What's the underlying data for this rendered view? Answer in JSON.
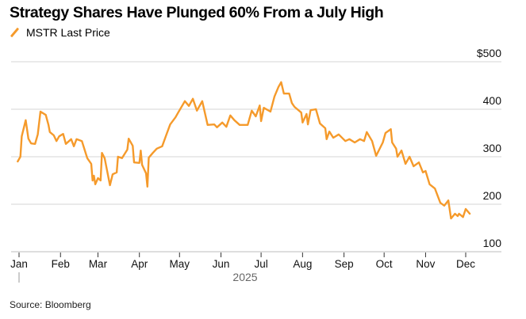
{
  "chart_data": {
    "type": "line",
    "title": "Strategy Shares Have Plunged 60% From a July High",
    "legend": [
      {
        "name": "MSTR Last Price",
        "color": "#f59a2b"
      }
    ],
    "legend_position": "top-left",
    "xlabel": "2025",
    "ylabel": "",
    "y_unit_prefix": "$",
    "ylim": [
      100,
      500
    ],
    "yticks": [
      100,
      200,
      300,
      400,
      500
    ],
    "ytick_labels": [
      "100",
      "200",
      "300",
      "400",
      "$500"
    ],
    "xticks": [
      "Jan",
      "Feb",
      "Mar",
      "Apr",
      "May",
      "Jun",
      "Jul",
      "Aug",
      "Sep",
      "Oct",
      "Nov",
      "Dec"
    ],
    "x_year_label": "2025",
    "grid": "horizontal",
    "source": "Source: Bloomberg",
    "series": [
      {
        "name": "MSTR Last Price",
        "color": "#f59a2b",
        "points": [
          [
            "2024-12-31",
            290
          ],
          [
            "2025-01-02",
            300
          ],
          [
            "2025-01-03",
            343
          ],
          [
            "2025-01-06",
            377
          ],
          [
            "2025-01-08",
            338
          ],
          [
            "2025-01-10",
            328
          ],
          [
            "2025-01-13",
            327
          ],
          [
            "2025-01-15",
            347
          ],
          [
            "2025-01-17",
            395
          ],
          [
            "2025-01-21",
            388
          ],
          [
            "2025-01-23",
            367
          ],
          [
            "2025-01-24",
            352
          ],
          [
            "2025-01-27",
            345
          ],
          [
            "2025-01-29",
            333
          ],
          [
            "2025-01-31",
            343
          ],
          [
            "2025-02-03",
            348
          ],
          [
            "2025-02-05",
            327
          ],
          [
            "2025-02-09",
            337
          ],
          [
            "2025-02-11",
            322
          ],
          [
            "2025-02-13",
            337
          ],
          [
            "2025-02-17",
            333
          ],
          [
            "2025-02-19",
            315
          ],
          [
            "2025-02-21",
            297
          ],
          [
            "2025-02-24",
            285
          ],
          [
            "2025-02-25",
            250
          ],
          [
            "2025-02-26",
            260
          ],
          [
            "2025-02-27",
            242
          ],
          [
            "2025-03-01",
            255
          ],
          [
            "2025-03-03",
            250
          ],
          [
            "2025-03-04",
            308
          ],
          [
            "2025-03-06",
            297
          ],
          [
            "2025-03-10",
            240
          ],
          [
            "2025-03-12",
            263
          ],
          [
            "2025-03-15",
            267
          ],
          [
            "2025-03-16",
            300
          ],
          [
            "2025-03-19",
            297
          ],
          [
            "2025-03-23",
            315
          ],
          [
            "2025-03-24",
            338
          ],
          [
            "2025-03-27",
            323
          ],
          [
            "2025-03-28",
            288
          ],
          [
            "2025-04-01",
            287
          ],
          [
            "2025-04-02",
            313
          ],
          [
            "2025-04-03",
            283
          ],
          [
            "2025-04-06",
            265
          ],
          [
            "2025-04-07",
            237
          ],
          [
            "2025-04-08",
            298
          ],
          [
            "2025-04-11",
            308
          ],
          [
            "2025-04-14",
            317
          ],
          [
            "2025-04-18",
            322
          ],
          [
            "2025-04-21",
            345
          ],
          [
            "2025-04-24",
            368
          ],
          [
            "2025-04-28",
            383
          ],
          [
            "2025-04-30",
            393
          ],
          [
            "2025-05-05",
            417
          ],
          [
            "2025-05-08",
            407
          ],
          [
            "2025-05-11",
            422
          ],
          [
            "2025-05-14",
            397
          ],
          [
            "2025-05-18",
            417
          ],
          [
            "2025-05-22",
            367
          ],
          [
            "2025-05-27",
            368
          ],
          [
            "2025-05-29",
            362
          ],
          [
            "2025-06-02",
            372
          ],
          [
            "2025-06-05",
            363
          ],
          [
            "2025-06-08",
            387
          ],
          [
            "2025-06-11",
            377
          ],
          [
            "2025-06-15",
            367
          ],
          [
            "2025-06-21",
            367
          ],
          [
            "2025-06-24",
            397
          ],
          [
            "2025-06-27",
            385
          ],
          [
            "2025-06-30",
            408
          ],
          [
            "2025-07-01",
            375
          ],
          [
            "2025-07-03",
            403
          ],
          [
            "2025-07-08",
            395
          ],
          [
            "2025-07-11",
            427
          ],
          [
            "2025-07-14",
            447
          ],
          [
            "2025-07-16",
            457
          ],
          [
            "2025-07-18",
            433
          ],
          [
            "2025-07-22",
            433
          ],
          [
            "2025-07-24",
            413
          ],
          [
            "2025-07-26",
            405
          ],
          [
            "2025-07-31",
            393
          ],
          [
            "2025-08-01",
            372
          ],
          [
            "2025-08-04",
            390
          ],
          [
            "2025-08-05",
            368
          ],
          [
            "2025-08-07",
            398
          ],
          [
            "2025-08-11",
            400
          ],
          [
            "2025-08-14",
            370
          ],
          [
            "2025-08-18",
            360
          ],
          [
            "2025-08-19",
            337
          ],
          [
            "2025-08-21",
            353
          ],
          [
            "2025-08-24",
            340
          ],
          [
            "2025-08-28",
            347
          ],
          [
            "2025-09-02",
            333
          ],
          [
            "2025-09-05",
            337
          ],
          [
            "2025-09-09",
            330
          ],
          [
            "2025-09-13",
            337
          ],
          [
            "2025-09-16",
            333
          ],
          [
            "2025-09-18",
            352
          ],
          [
            "2025-09-22",
            333
          ],
          [
            "2025-09-25",
            302
          ],
          [
            "2025-09-30",
            330
          ],
          [
            "2025-10-02",
            350
          ],
          [
            "2025-10-06",
            358
          ],
          [
            "2025-10-07",
            330
          ],
          [
            "2025-10-10",
            317
          ],
          [
            "2025-10-11",
            300
          ],
          [
            "2025-10-14",
            313
          ],
          [
            "2025-10-17",
            285
          ],
          [
            "2025-10-20",
            300
          ],
          [
            "2025-10-23",
            280
          ],
          [
            "2025-10-27",
            288
          ],
          [
            "2025-10-30",
            267
          ],
          [
            "2025-11-01",
            270
          ],
          [
            "2025-11-04",
            242
          ],
          [
            "2025-11-08",
            233
          ],
          [
            "2025-11-12",
            203
          ],
          [
            "2025-11-15",
            197
          ],
          [
            "2025-11-18",
            208
          ],
          [
            "2025-11-20",
            170
          ],
          [
            "2025-11-23",
            180
          ],
          [
            "2025-11-25",
            175
          ],
          [
            "2025-11-26",
            180
          ],
          [
            "2025-11-29",
            173
          ],
          [
            "2025-12-01",
            190
          ],
          [
            "2025-12-04",
            180
          ]
        ]
      }
    ]
  }
}
